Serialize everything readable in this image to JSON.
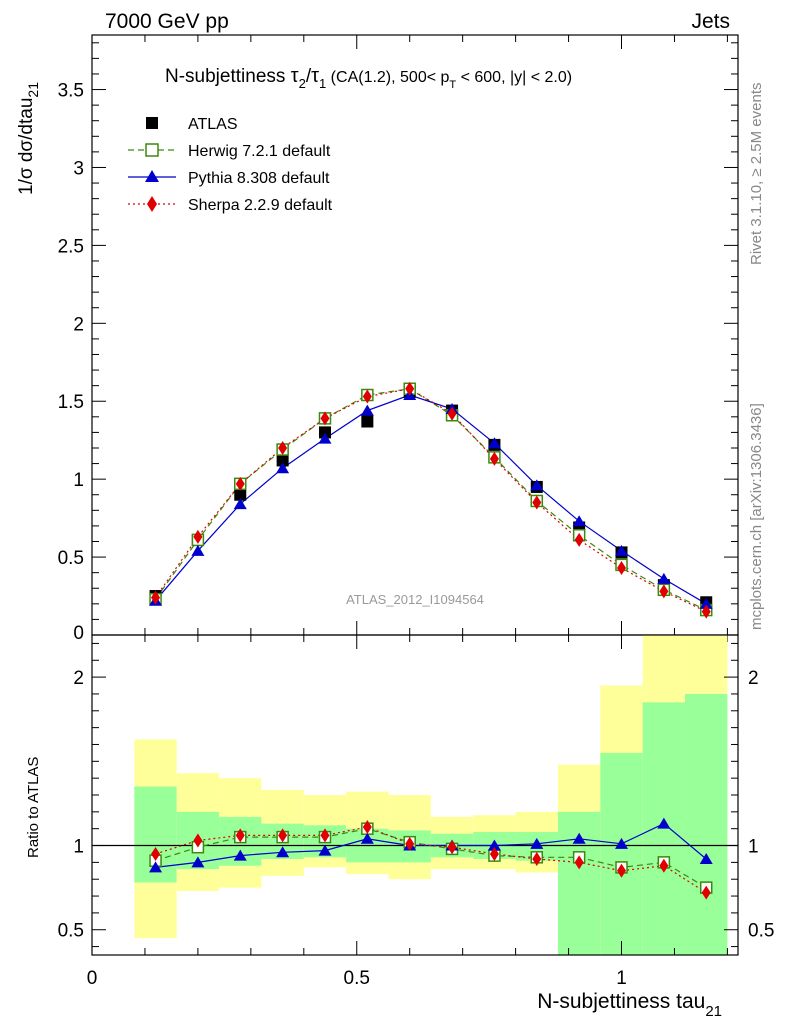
{
  "header": {
    "left": "7000 GeV pp",
    "right": "Jets"
  },
  "title": {
    "prefix": "N-subjettiness ",
    "tau": "τ",
    "sub2": "2",
    "slash": "/",
    "sub1": "1",
    "rest_a": " (CA(1.2), 500< p",
    "sub_T": "T",
    "rest_b": " < 600, |y| < 2.0)"
  },
  "side_labels": {
    "rivet": "Rivet 3.1.10, ≥ 2.5M events",
    "mcplots": "mcplots.cern.ch [arXiv:1306.3436]"
  },
  "watermark": "ATLAS_2012_I1094564",
  "colors": {
    "atlas": "#000000",
    "herwig": "#3a8a0f",
    "pythia": "#0000cc",
    "sherpa": "#e00000",
    "band_inner": "#99ff99",
    "band_outer": "#ffff99"
  },
  "chart_data": [
    {
      "type": "line",
      "panel": "main",
      "ylabel_main": "1/σ dσ/dtau",
      "ylabel_sub": "21",
      "xlim": [
        0,
        1.22
      ],
      "ylim": [
        0,
        3.85
      ],
      "yticks": [
        {
          "v": 0.5,
          "label": "0.5"
        },
        {
          "v": 1,
          "label": "1"
        },
        {
          "v": 1.5,
          "label": "1.5"
        },
        {
          "v": 2,
          "label": "2"
        },
        {
          "v": 2.5,
          "label": "2.5"
        },
        {
          "v": 3,
          "label": "3"
        },
        {
          "v": 3.5,
          "label": "3.5"
        }
      ],
      "ytick_zero": "0",
      "legend": "top-left",
      "x": [
        0.12,
        0.2,
        0.28,
        0.36,
        0.44,
        0.52,
        0.6,
        0.68,
        0.76,
        0.84,
        0.92,
        1.0,
        1.08,
        1.16
      ],
      "series": [
        {
          "key": "atlas",
          "name": "ATLAS",
          "marker": "square",
          "values": [
            0.25,
            0.61,
            0.9,
            1.12,
            1.3,
            1.37,
            1.56,
            1.44,
            1.22,
            0.95,
            0.69,
            0.53,
            0.32,
            0.21
          ]
        },
        {
          "key": "herwig",
          "name": "Herwig 7.2.1 default",
          "marker": "open-square",
          "dash": "6,4",
          "values": [
            0.23,
            0.61,
            0.97,
            1.19,
            1.39,
            1.54,
            1.58,
            1.41,
            1.14,
            0.86,
            0.64,
            0.45,
            0.29,
            0.16
          ]
        },
        {
          "key": "pythia",
          "name": "Pythia 8.308 default",
          "marker": "triangle",
          "values": [
            0.22,
            0.54,
            0.84,
            1.07,
            1.26,
            1.44,
            1.54,
            1.45,
            1.23,
            0.96,
            0.73,
            0.54,
            0.36,
            0.2
          ]
        },
        {
          "key": "sherpa",
          "name": "Sherpa 2.2.9 default",
          "marker": "diamond",
          "dash": "2,3",
          "values": [
            0.24,
            0.63,
            0.97,
            1.2,
            1.39,
            1.53,
            1.58,
            1.42,
            1.13,
            0.85,
            0.61,
            0.43,
            0.28,
            0.15
          ]
        }
      ]
    },
    {
      "type": "line",
      "panel": "ratio",
      "ylabel": "Ratio to ATLAS",
      "xlabel_main": "N-subjettiness tau",
      "xlabel_sub": "21",
      "xlim": [
        0,
        1.22
      ],
      "ylim": [
        0.35,
        2.25
      ],
      "yticks": [
        {
          "v": 0.5,
          "label": "0.5"
        },
        {
          "v": 1,
          "label": "1"
        },
        {
          "v": 2,
          "label": "2"
        }
      ],
      "xticks": [
        {
          "v": 0,
          "label": "0"
        },
        {
          "v": 0.5,
          "label": "0.5"
        },
        {
          "v": 1,
          "label": "1"
        }
      ],
      "bins": [
        [
          0.08,
          0.16
        ],
        [
          0.16,
          0.24
        ],
        [
          0.24,
          0.32
        ],
        [
          0.32,
          0.4
        ],
        [
          0.4,
          0.48
        ],
        [
          0.48,
          0.56
        ],
        [
          0.56,
          0.64
        ],
        [
          0.64,
          0.72
        ],
        [
          0.72,
          0.8
        ],
        [
          0.8,
          0.88
        ],
        [
          0.88,
          0.96
        ],
        [
          0.96,
          1.04
        ],
        [
          1.04,
          1.12
        ],
        [
          1.12,
          1.2
        ]
      ],
      "band_inner": [
        [
          0.78,
          1.35
        ],
        [
          0.86,
          1.2
        ],
        [
          0.88,
          1.17
        ],
        [
          0.92,
          1.13
        ],
        [
          0.93,
          1.12
        ],
        [
          0.9,
          1.1
        ],
        [
          0.9,
          1.09
        ],
        [
          0.93,
          1.07
        ],
        [
          0.92,
          1.08
        ],
        [
          0.91,
          1.08
        ],
        [
          0.35,
          1.2
        ],
        [
          0.35,
          1.55
        ],
        [
          0.35,
          1.85
        ],
        [
          0.35,
          1.9
        ]
      ],
      "band_outer": [
        [
          0.45,
          1.63
        ],
        [
          0.73,
          1.43
        ],
        [
          0.75,
          1.4
        ],
        [
          0.82,
          1.33
        ],
        [
          0.87,
          1.3
        ],
        [
          0.83,
          1.32
        ],
        [
          0.8,
          1.3
        ],
        [
          0.86,
          1.17
        ],
        [
          0.86,
          1.18
        ],
        [
          0.84,
          1.2
        ],
        [
          0.35,
          1.48
        ],
        [
          0.35,
          1.95
        ],
        [
          0.35,
          2.25
        ],
        [
          0.35,
          2.25
        ]
      ],
      "x": [
        0.12,
        0.2,
        0.28,
        0.36,
        0.44,
        0.52,
        0.6,
        0.68,
        0.76,
        0.84,
        0.92,
        1.0,
        1.08,
        1.16
      ],
      "series": [
        {
          "key": "herwig",
          "marker": "open-square",
          "dash": "6,4",
          "values": [
            0.91,
            0.99,
            1.05,
            1.05,
            1.05,
            1.1,
            1.02,
            0.98,
            0.94,
            0.93,
            0.93,
            0.87,
            0.9,
            0.75
          ]
        },
        {
          "key": "pythia",
          "marker": "triangle",
          "values": [
            0.87,
            0.9,
            0.94,
            0.96,
            0.97,
            1.04,
            1.0,
            1.0,
            1.0,
            1.01,
            1.04,
            1.01,
            1.13,
            0.92
          ]
        },
        {
          "key": "sherpa",
          "marker": "diamond",
          "dash": "2,3",
          "values": [
            0.95,
            1.03,
            1.06,
            1.06,
            1.06,
            1.11,
            1.01,
            0.99,
            0.95,
            0.92,
            0.9,
            0.85,
            0.88,
            0.72
          ]
        }
      ]
    }
  ]
}
